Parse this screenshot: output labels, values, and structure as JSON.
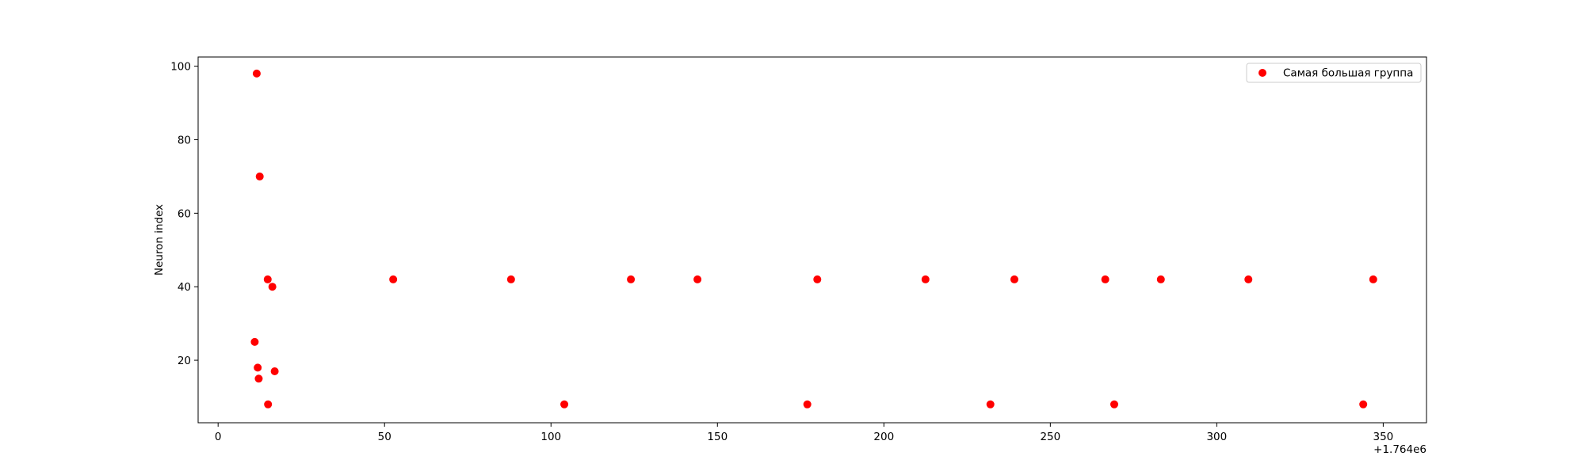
{
  "chart_data": {
    "type": "scatter",
    "title": "",
    "xlabel": "",
    "ylabel": "Neuron index",
    "x_offset_label": "+1.764e6",
    "xlim": [
      -6,
      363
    ],
    "ylim": [
      3,
      102.5
    ],
    "xticks": [
      0,
      50,
      100,
      150,
      200,
      250,
      300,
      350
    ],
    "yticks": [
      20,
      40,
      60,
      80,
      100
    ],
    "grid": false,
    "legend_position": "top-right",
    "marker_color": "#ff0000",
    "series": [
      {
        "name": "Самая большая группа",
        "color": "#ff0000",
        "points": [
          {
            "x": 11.6,
            "y": 98
          },
          {
            "x": 12.5,
            "y": 70
          },
          {
            "x": 11.0,
            "y": 25
          },
          {
            "x": 11.9,
            "y": 18
          },
          {
            "x": 12.2,
            "y": 15
          },
          {
            "x": 14.9,
            "y": 42
          },
          {
            "x": 15.0,
            "y": 8
          },
          {
            "x": 16.3,
            "y": 40
          },
          {
            "x": 17.0,
            "y": 17
          },
          {
            "x": 52.6,
            "y": 42
          },
          {
            "x": 88.0,
            "y": 42
          },
          {
            "x": 104.0,
            "y": 8
          },
          {
            "x": 124.0,
            "y": 42
          },
          {
            "x": 144.0,
            "y": 42
          },
          {
            "x": 177.0,
            "y": 8
          },
          {
            "x": 180.0,
            "y": 42
          },
          {
            "x": 212.5,
            "y": 42
          },
          {
            "x": 232.0,
            "y": 8
          },
          {
            "x": 239.2,
            "y": 42
          },
          {
            "x": 266.5,
            "y": 42
          },
          {
            "x": 269.2,
            "y": 8
          },
          {
            "x": 283.2,
            "y": 42
          },
          {
            "x": 309.5,
            "y": 42
          },
          {
            "x": 344.0,
            "y": 8
          },
          {
            "x": 347.0,
            "y": 42
          }
        ]
      }
    ]
  }
}
